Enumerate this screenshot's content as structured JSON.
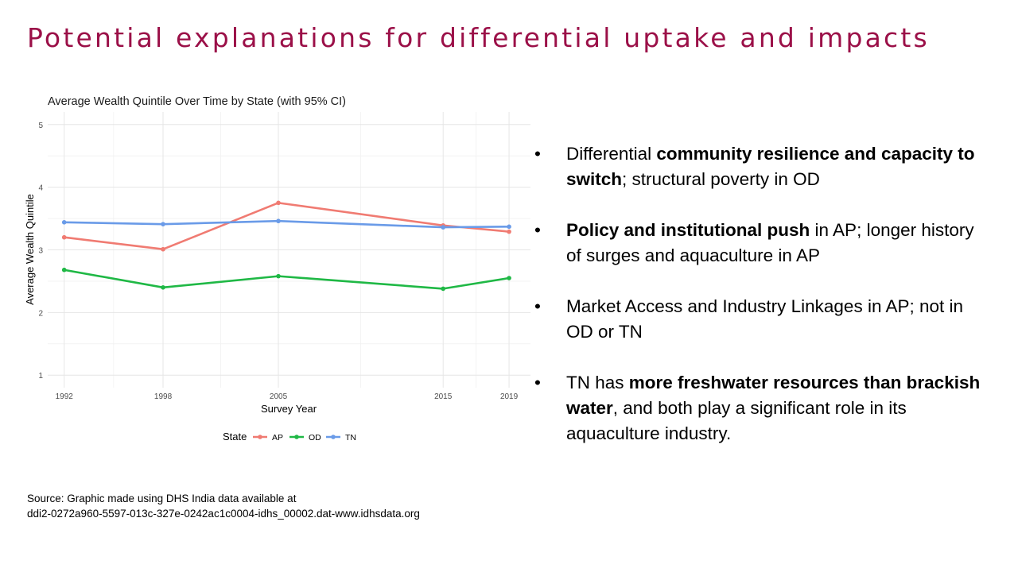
{
  "slide": {
    "title": "Potential explanations for differential uptake and impacts"
  },
  "bullets": [
    [
      {
        "text": "Differential ",
        "bold": false
      },
      {
        "text": "community resilience and capacity to switch",
        "bold": true
      },
      {
        "text": "; structural poverty in OD",
        "bold": false
      }
    ],
    [
      {
        "text": "Policy and institutional push",
        "bold": true
      },
      {
        "text": " in AP; longer history of surges and aquaculture in AP",
        "bold": false
      }
    ],
    [
      {
        "text": "Market Access and Industry Linkages in AP; not in OD or TN",
        "bold": false
      }
    ],
    [
      {
        "text": "TN has ",
        "bold": false
      },
      {
        "text": "more freshwater resources than brackish water",
        "bold": true
      },
      {
        "text": ", and both play a significant role in its aquaculture industry.",
        "bold": false
      }
    ]
  ],
  "bullet_glyph": "•",
  "source": {
    "line1": "Source: Graphic made using DHS India data available at",
    "line2": "ddi2-0272a960-5597-013c-327e-0242ac1c0004-idhs_00002.dat-www.idhsdata.org"
  },
  "chart_data": {
    "type": "line",
    "title": "Average Wealth Quintile Over Time by State (with 95% CI)",
    "xlabel": "Survey Year",
    "ylabel": "Average Wealth Quintile",
    "x": [
      1992,
      1998,
      2005,
      2015,
      2019
    ],
    "xlim": [
      1991,
      2020.3
    ],
    "ylim": [
      0.8,
      5.2
    ],
    "yticks": [
      1,
      2,
      3,
      4,
      5
    ],
    "grid": true,
    "legend": {
      "title": "State",
      "position": "bottom"
    },
    "series": [
      {
        "name": "AP",
        "color": "#f07b72",
        "values": [
          3.2,
          3.01,
          3.75,
          3.39,
          3.29
        ]
      },
      {
        "name": "OD",
        "color": "#1fb845",
        "values": [
          2.68,
          2.4,
          2.58,
          2.38,
          2.55
        ]
      },
      {
        "name": "TN",
        "color": "#6a9be8",
        "values": [
          3.44,
          3.41,
          3.46,
          3.36,
          3.37
        ]
      }
    ]
  }
}
